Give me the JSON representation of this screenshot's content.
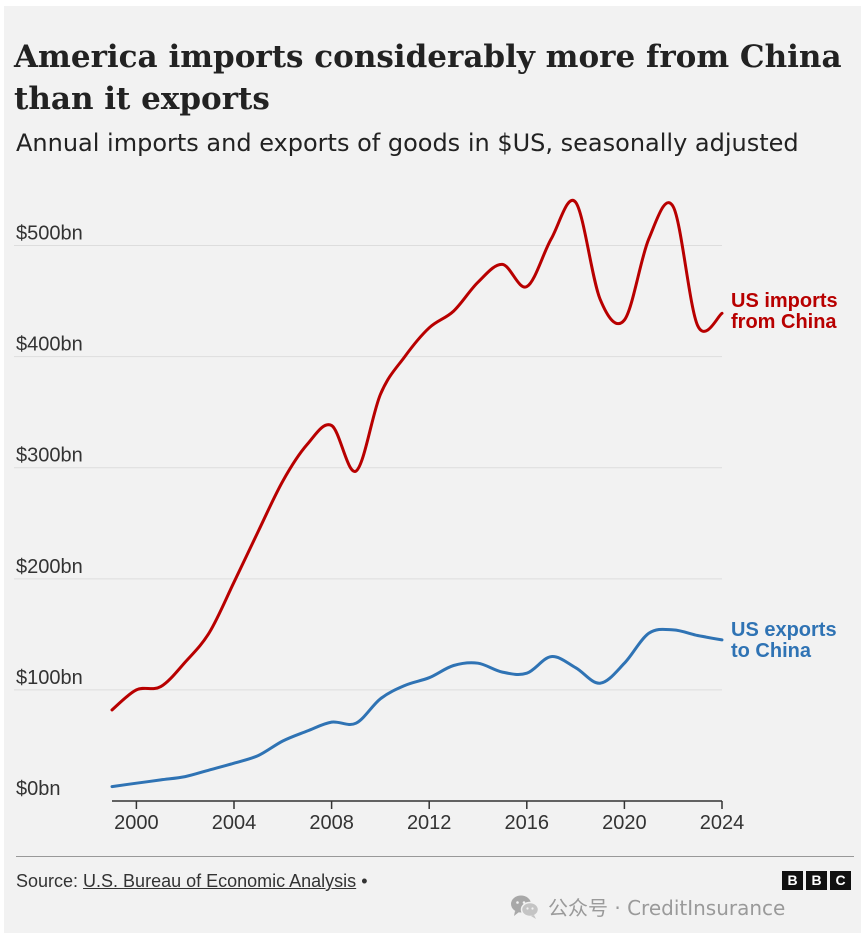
{
  "title": "America imports considerably more from China than it exports",
  "subtitle": "Annual imports and exports of goods in $US, seasonally adjusted",
  "chart_data": {
    "type": "line",
    "title": "America imports considerably more from China than it exports",
    "subtitle": "Annual imports and exports of goods in $US, seasonally adjusted",
    "xlabel": "",
    "ylabel": "",
    "xlim": [
      1999,
      2024
    ],
    "ylim": [
      0,
      550
    ],
    "x_ticks": [
      2000,
      2004,
      2008,
      2012,
      2016,
      2020,
      2024
    ],
    "x_tick_labels": [
      "2000",
      "2004",
      "2008",
      "2012",
      "2016",
      "2020",
      "2024"
    ],
    "y_ticks": [
      0,
      100,
      200,
      300,
      400,
      500
    ],
    "y_tick_labels": [
      "$0bn",
      "$100bn",
      "$200bn",
      "$300bn",
      "$400bn",
      "$500bn"
    ],
    "grid": true,
    "legend": "direct labels at line ends",
    "x": [
      1999,
      2000,
      2001,
      2002,
      2003,
      2004,
      2005,
      2006,
      2007,
      2008,
      2009,
      2010,
      2011,
      2012,
      2013,
      2014,
      2015,
      2016,
      2017,
      2018,
      2019,
      2020,
      2021,
      2022,
      2023,
      2024
    ],
    "series": [
      {
        "name": "US imports from China",
        "label_lines": [
          "US imports",
          "from China"
        ],
        "color": "#b80000",
        "values": [
          82,
          100,
          103,
          125,
          152,
          197,
          243,
          288,
          321,
          338,
          297,
          366,
          400,
          426,
          441,
          467,
          483,
          463,
          506,
          539,
          452,
          433,
          506,
          535,
          428,
          439
        ]
      },
      {
        "name": "US exports to China",
        "label_lines": [
          "US exports",
          "to China"
        ],
        "color": "#2f73b4",
        "values": [
          13,
          16,
          19,
          22,
          28,
          34,
          41,
          54,
          63,
          71,
          70,
          92,
          104,
          111,
          122,
          124,
          116,
          115,
          130,
          120,
          106,
          124,
          151,
          154,
          149,
          145
        ]
      }
    ]
  },
  "source": {
    "prefix": "Source: ",
    "link_text": "U.S. Bureau of Economic Analysis",
    "suffix": " •"
  },
  "logo": {
    "letters": [
      "B",
      "B",
      "C"
    ]
  },
  "watermark": {
    "icon": "wechat-icon",
    "text": "公众号 · CreditInsurance"
  },
  "colors": {
    "background": "#f2f2f2",
    "imports": "#b80000",
    "exports": "#2f73b4",
    "grid": "#dddddd",
    "axis": "#333333"
  }
}
